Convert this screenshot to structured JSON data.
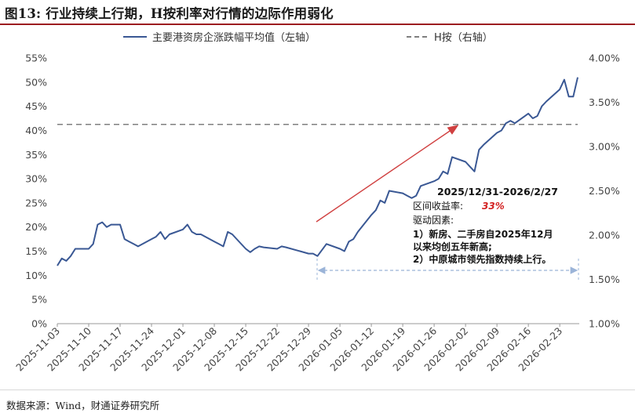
{
  "figure_title": "图13: 行业持续上行期，H按利率对行情的边际作用弱化",
  "source": "数据来源：Wind，财通证券研究所",
  "legend": [
    {
      "label": "主要港资房企涨跌幅平均值（左轴）",
      "style": "solid",
      "color": "#3a5894"
    },
    {
      "label": "H按（右轴）",
      "style": "dashed",
      "color": "#7f7f7f"
    }
  ],
  "annotation": {
    "period": "2025/12/31-2026/2/27",
    "return_label": "区间收益率:",
    "return_value": "33%",
    "drivers_label": "驱动因素:",
    "driver_1_a": "1）新房、二手房自2025年12月",
    "driver_1_b": "以来均创五年新高;",
    "driver_2": "2）中原城市领先指数持续上行。",
    "highlight_color": "#d32020",
    "arrow_color": "#d04040",
    "range_line_color": "#9bb4d8"
  },
  "chart_data": {
    "type": "line",
    "y_left": {
      "ylim": [
        0,
        55
      ],
      "ticks": [
        "0%",
        "5%",
        "10%",
        "15%",
        "20%",
        "25%",
        "30%",
        "35%",
        "40%",
        "45%",
        "50%",
        "55%"
      ]
    },
    "y_right": {
      "ylim": [
        1.0,
        4.0
      ],
      "ticks": [
        "1.00%",
        "1.50%",
        "2.00%",
        "2.50%",
        "3.00%",
        "3.50%",
        "4.00%"
      ]
    },
    "x_ticks": [
      "2025-11-03",
      "2025-11-10",
      "2025-11-17",
      "2025-11-24",
      "2025-12-01",
      "2025-12-08",
      "2025-12-15",
      "2025-12-22",
      "2025-12-29",
      "2026-01-05",
      "2026-01-12",
      "2026-01-19",
      "2026-01-26",
      "2026-02-02",
      "2026-02-09",
      "2026-02-16",
      "2026-02-23"
    ],
    "x_start": "2025-11-03",
    "x_end": "2026-02-27",
    "series": [
      {
        "name": "主要港资房企涨跌幅平均值（左轴）",
        "axis": "left",
        "color": "#3a5894",
        "points": [
          [
            "2025-11-03",
            12.0
          ],
          [
            "2025-11-04",
            13.5
          ],
          [
            "2025-11-05",
            13.0
          ],
          [
            "2025-11-06",
            14.0
          ],
          [
            "2025-11-07",
            15.5
          ],
          [
            "2025-11-10",
            15.5
          ],
          [
            "2025-11-11",
            16.5
          ],
          [
            "2025-11-12",
            20.5
          ],
          [
            "2025-11-13",
            21.0
          ],
          [
            "2025-11-14",
            20.0
          ],
          [
            "2025-11-15",
            20.5
          ],
          [
            "2025-11-17",
            20.5
          ],
          [
            "2025-11-18",
            17.5
          ],
          [
            "2025-11-19",
            17.0
          ],
          [
            "2025-11-20",
            16.5
          ],
          [
            "2025-11-21",
            16.0
          ],
          [
            "2025-11-24",
            17.5
          ],
          [
            "2025-11-25",
            18.0
          ],
          [
            "2025-11-26",
            19.0
          ],
          [
            "2025-11-27",
            17.5
          ],
          [
            "2025-11-28",
            18.5
          ],
          [
            "2025-12-01",
            19.5
          ],
          [
            "2025-12-02",
            20.5
          ],
          [
            "2025-12-03",
            19.0
          ],
          [
            "2025-12-04",
            18.5
          ],
          [
            "2025-12-05",
            18.5
          ],
          [
            "2025-12-08",
            17.0
          ],
          [
            "2025-12-09",
            16.5
          ],
          [
            "2025-12-10",
            16.0
          ],
          [
            "2025-12-11",
            19.0
          ],
          [
            "2025-12-12",
            18.5
          ],
          [
            "2025-12-15",
            15.5
          ],
          [
            "2025-12-16",
            14.8
          ],
          [
            "2025-12-17",
            15.5
          ],
          [
            "2025-12-18",
            16.0
          ],
          [
            "2025-12-19",
            15.8
          ],
          [
            "2025-12-22",
            15.5
          ],
          [
            "2025-12-23",
            16.0
          ],
          [
            "2025-12-24",
            15.8
          ],
          [
            "2025-12-29",
            14.5
          ],
          [
            "2025-12-30",
            14.5
          ],
          [
            "2025-12-31",
            14.0
          ],
          [
            "2026-01-02",
            16.5
          ],
          [
            "2026-01-05",
            15.5
          ],
          [
            "2026-01-06",
            15.0
          ],
          [
            "2026-01-07",
            17.0
          ],
          [
            "2026-01-08",
            17.5
          ],
          [
            "2026-01-09",
            19.0
          ],
          [
            "2026-01-12",
            22.5
          ],
          [
            "2026-01-13",
            23.5
          ],
          [
            "2026-01-14",
            25.5
          ],
          [
            "2026-01-15",
            25.0
          ],
          [
            "2026-01-16",
            27.5
          ],
          [
            "2026-01-19",
            27.0
          ],
          [
            "2026-01-20",
            26.5
          ],
          [
            "2026-01-21",
            26.0
          ],
          [
            "2026-01-22",
            26.5
          ],
          [
            "2026-01-23",
            28.5
          ],
          [
            "2026-01-26",
            29.5
          ],
          [
            "2026-01-27",
            30.0
          ],
          [
            "2026-01-28",
            31.5
          ],
          [
            "2026-01-29",
            31.0
          ],
          [
            "2026-01-30",
            34.5
          ],
          [
            "2026-02-02",
            33.5
          ],
          [
            "2026-02-03",
            32.5
          ],
          [
            "2026-02-04",
            31.5
          ],
          [
            "2026-02-05",
            36.0
          ],
          [
            "2026-02-06",
            37.0
          ],
          [
            "2026-02-09",
            39.5
          ],
          [
            "2026-02-10",
            40.0
          ],
          [
            "2026-02-11",
            41.5
          ],
          [
            "2026-02-12",
            42.0
          ],
          [
            "2026-02-13",
            41.5
          ],
          [
            "2026-02-16",
            43.5
          ],
          [
            "2026-02-17",
            42.5
          ],
          [
            "2026-02-18",
            43.0
          ],
          [
            "2026-02-19",
            45.0
          ],
          [
            "2026-02-20",
            46.0
          ],
          [
            "2026-02-23",
            48.5
          ],
          [
            "2026-02-24",
            50.5
          ],
          [
            "2026-02-25",
            47.0
          ],
          [
            "2026-02-26",
            47.0
          ],
          [
            "2026-02-27",
            51.0
          ]
        ]
      },
      {
        "name": "H按（右轴）",
        "axis": "right",
        "color": "#7f7f7f",
        "constant": 3.25
      }
    ]
  }
}
